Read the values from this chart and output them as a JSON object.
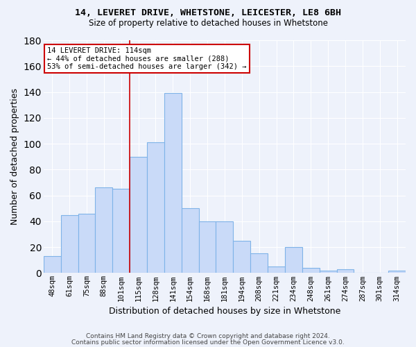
{
  "title1": "14, LEVERET DRIVE, WHETSTONE, LEICESTER, LE8 6BH",
  "title2": "Size of property relative to detached houses in Whetstone",
  "xlabel": "Distribution of detached houses by size in Whetstone",
  "ylabel": "Number of detached properties",
  "categories": [
    "48sqm",
    "61sqm",
    "75sqm",
    "88sqm",
    "101sqm",
    "115sqm",
    "128sqm",
    "141sqm",
    "154sqm",
    "168sqm",
    "181sqm",
    "194sqm",
    "208sqm",
    "221sqm",
    "234sqm",
    "248sqm",
    "261sqm",
    "274sqm",
    "287sqm",
    "301sqm",
    "314sqm"
  ],
  "values": [
    13,
    45,
    46,
    66,
    65,
    90,
    101,
    139,
    50,
    40,
    40,
    25,
    15,
    5,
    20,
    4,
    2,
    3,
    0,
    0,
    2
  ],
  "bar_color": "#c9daf8",
  "bar_edge_color": "#7fb3e8",
  "background_color": "#eef2fb",
  "grid_color": "#ffffff",
  "vline_index": 5,
  "vline_color": "#cc0000",
  "annotation_line1": "14 LEVERET DRIVE: 114sqm",
  "annotation_line2": "← 44% of detached houses are smaller (288)",
  "annotation_line3": "53% of semi-detached houses are larger (342) →",
  "annotation_box_color": "#ffffff",
  "annotation_box_edge": "#cc0000",
  "footnote1": "Contains HM Land Registry data © Crown copyright and database right 2024.",
  "footnote2": "Contains public sector information licensed under the Open Government Licence v3.0.",
  "ylim": [
    0,
    180
  ],
  "yticks": [
    0,
    20,
    40,
    60,
    80,
    100,
    120,
    140,
    160,
    180
  ]
}
